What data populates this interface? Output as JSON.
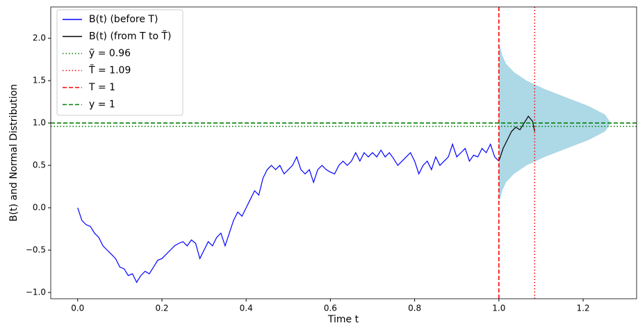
{
  "chart_data": {
    "type": "line",
    "x_label": "Time t",
    "y_label": "B(t) and Normal Distribution",
    "xlim": [
      -0.064,
      1.327
    ],
    "ylim": [
      -1.074,
      2.37
    ],
    "xticks": [
      {
        "value": 0,
        "label": "0.0"
      },
      {
        "value": 0.2,
        "label": "0.2"
      },
      {
        "value": 0.4,
        "label": "0.4"
      },
      {
        "value": 0.6,
        "label": "0.6"
      },
      {
        "value": 0.8,
        "label": "0.8"
      },
      {
        "value": 1,
        "label": "1.0"
      },
      {
        "value": 1.2,
        "label": "1.2"
      }
    ],
    "yticks": [
      {
        "value": -1,
        "label": "−1.0"
      },
      {
        "value": -0.5,
        "label": "−0.5"
      },
      {
        "value": 0,
        "label": "0.0"
      },
      0.5,
      {
        "value": 1,
        "label": "1.0"
      },
      1.5,
      {
        "value": 2,
        "label": "2.0"
      }
    ],
    "legend": "upper left",
    "series": [
      {
        "name": "B(t) (before T)",
        "color": "#0000ff",
        "x": [
          0,
          0.01,
          0.02,
          0.03,
          0.04,
          0.05,
          0.06,
          0.07,
          0.08,
          0.09,
          0.1,
          0.11,
          0.12,
          0.13,
          0.14,
          0.15,
          0.16,
          0.17,
          0.18,
          0.19,
          0.2,
          0.21,
          0.22,
          0.23,
          0.24,
          0.25,
          0.26,
          0.27,
          0.28,
          0.29,
          0.3,
          0.31,
          0.32,
          0.33,
          0.34,
          0.35,
          0.36,
          0.37,
          0.38,
          0.39,
          0.4,
          0.41,
          0.42,
          0.43,
          0.44,
          0.45,
          0.46,
          0.47,
          0.48,
          0.49,
          0.5,
          0.51,
          0.52,
          0.53,
          0.54,
          0.55,
          0.56,
          0.57,
          0.58,
          0.59,
          0.6,
          0.61,
          0.62,
          0.63,
          0.64,
          0.65,
          0.66,
          0.67,
          0.68,
          0.69,
          0.7,
          0.71,
          0.72,
          0.73,
          0.74,
          0.75,
          0.76,
          0.77,
          0.78,
          0.79,
          0.8,
          0.81,
          0.82,
          0.83,
          0.84,
          0.85,
          0.86,
          0.87,
          0.88,
          0.89,
          0.9,
          0.91,
          0.92,
          0.93,
          0.94,
          0.95,
          0.96,
          0.97,
          0.98,
          0.99,
          1.0
        ],
        "values": [
          0,
          -0.15,
          -0.2,
          -0.22,
          -0.3,
          -0.35,
          -0.45,
          -0.5,
          -0.55,
          -0.6,
          -0.7,
          -0.72,
          -0.8,
          -0.78,
          -0.88,
          -0.8,
          -0.75,
          -0.78,
          -0.7,
          -0.62,
          -0.6,
          -0.55,
          -0.5,
          -0.45,
          -0.42,
          -0.4,
          -0.45,
          -0.38,
          -0.42,
          -0.6,
          -0.5,
          -0.4,
          -0.45,
          -0.35,
          -0.3,
          -0.45,
          -0.3,
          -0.15,
          -0.05,
          -0.1,
          0,
          0.1,
          0.2,
          0.15,
          0.35,
          0.45,
          0.5,
          0.45,
          0.5,
          0.4,
          0.45,
          0.5,
          0.6,
          0.45,
          0.4,
          0.45,
          0.3,
          0.45,
          0.5,
          0.45,
          0.42,
          0.4,
          0.5,
          0.55,
          0.5,
          0.55,
          0.65,
          0.55,
          0.65,
          0.6,
          0.65,
          0.6,
          0.68,
          0.6,
          0.65,
          0.58,
          0.5,
          0.55,
          0.6,
          0.65,
          0.55,
          0.4,
          0.5,
          0.55,
          0.45,
          0.6,
          0.5,
          0.55,
          0.6,
          0.75,
          0.6,
          0.65,
          0.7,
          0.55,
          0.62,
          0.6,
          0.7,
          0.65,
          0.75,
          0.6,
          0.55
        ]
      },
      {
        "name": "B(t) (from T to T̃)",
        "color": "#000000",
        "x": [
          1.0,
          1.01,
          1.02,
          1.03,
          1.04,
          1.05,
          1.06,
          1.07,
          1.08,
          1.085
        ],
        "values": [
          0.55,
          0.7,
          0.8,
          0.9,
          0.95,
          0.92,
          1.0,
          1.08,
          1.02,
          0.9
        ]
      }
    ],
    "reference_lines": [
      {
        "name": "ỹ = 0.96",
        "color": "#008000",
        "orientation": "horizontal",
        "style": "dotted",
        "value": 0.96
      },
      {
        "name": "T̃ = 1.09",
        "color": "#ff0000",
        "orientation": "vertical",
        "style": "dotted",
        "value": 1.085
      },
      {
        "name": "T = 1",
        "color": "#ff0000",
        "orientation": "vertical",
        "style": "dashed",
        "value": 1
      },
      {
        "name": "y = 1",
        "color": "#008000",
        "orientation": "horizontal",
        "style": "dashed",
        "value": 1
      }
    ],
    "distribution": {
      "color": "#add8e6",
      "base_x": 1,
      "y": [
        0.1,
        0.2,
        0.3,
        0.4,
        0.5,
        0.6,
        0.7,
        0.8,
        0.9,
        1.0,
        1.1,
        1.2,
        1.3,
        1.4,
        1.5,
        1.6,
        1.7,
        1.8,
        1.9
      ],
      "x": [
        1.003,
        1.008,
        1.017,
        1.036,
        1.066,
        1.109,
        1.161,
        1.213,
        1.252,
        1.266,
        1.252,
        1.213,
        1.161,
        1.109,
        1.066,
        1.036,
        1.017,
        1.008,
        1.003
      ]
    }
  }
}
